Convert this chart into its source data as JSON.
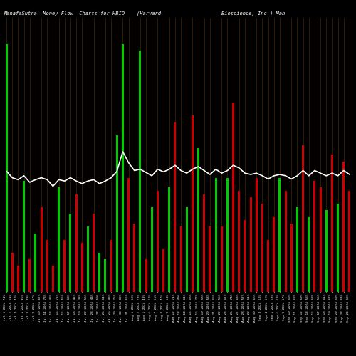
{
  "title": "ManafaSutra  Money Flow  Charts for HBIO    (Harvard                    Bioscience, Inc.) Man",
  "background_color": "#000000",
  "bar_color": [
    "#00CC00",
    "#CC0000",
    "#CC0000",
    "#00CC00",
    "#CC0000",
    "#00CC00",
    "#CC0000",
    "#CC0000",
    "#CC0000",
    "#00CC00",
    "#CC0000",
    "#00CC00",
    "#CC0000",
    "#CC0000",
    "#00CC00",
    "#CC0000",
    "#00CC00",
    "#00CC00",
    "#CC0000",
    "#00CC00",
    "#00CC00",
    "#CC0000",
    "#CC0000",
    "#00CC00",
    "#CC0000",
    "#00CC00",
    "#CC0000",
    "#CC0000",
    "#00CC00",
    "#CC0000",
    "#CC0000",
    "#00CC00",
    "#CC0000",
    "#00CC00",
    "#CC0000",
    "#CC0000",
    "#00CC00",
    "#CC0000",
    "#00CC00",
    "#CC0000",
    "#CC0000",
    "#CC0000",
    "#CC0000",
    "#CC0000",
    "#CC0000",
    "#CC0000",
    "#CC0000",
    "#00CC00",
    "#CC0000",
    "#CC0000",
    "#00CC00",
    "#CC0000",
    "#00CC00",
    "#CC0000",
    "#CC0000",
    "#00CC00",
    "#CC0000",
    "#00CC00",
    "#CC0000",
    "#CC0000"
  ],
  "bar_heights": [
    380,
    60,
    40,
    170,
    50,
    90,
    130,
    80,
    40,
    160,
    80,
    120,
    150,
    75,
    100,
    120,
    60,
    50,
    80,
    240,
    380,
    175,
    105,
    370,
    50,
    130,
    155,
    65,
    160,
    260,
    100,
    130,
    270,
    220,
    150,
    100,
    175,
    100,
    175,
    290,
    155,
    110,
    145,
    175,
    135,
    80,
    115,
    175,
    155,
    105,
    130,
    225,
    115,
    170,
    160,
    125,
    210,
    135,
    200,
    155
  ],
  "line_y": [
    185,
    175,
    172,
    178,
    168,
    172,
    175,
    172,
    162,
    172,
    170,
    175,
    170,
    166,
    170,
    172,
    166,
    170,
    175,
    185,
    215,
    198,
    186,
    188,
    183,
    178,
    188,
    184,
    188,
    194,
    186,
    182,
    188,
    192,
    186,
    180,
    188,
    182,
    186,
    194,
    190,
    182,
    180,
    182,
    178,
    173,
    178,
    180,
    178,
    173,
    178,
    186,
    178,
    186,
    182,
    178,
    182,
    178,
    186,
    180
  ],
  "grid_color": "#3A2000",
  "line_color": "#FFFFFF",
  "x_labels": [
    "Jul 1 2024 74%",
    "Jul 2 2024 54%",
    "Jul 3 2024 72%",
    "Jul 5 2024 46%",
    "Jul 8 2024 39%",
    "Jul 9 2024 57%",
    "Jul 10 2024 67%",
    "Jul 11 2024 73%",
    "Jul 12 2024 48%",
    "Jul 15 2024 72%",
    "Jul 16 2024 55%",
    "Jul 17 2024 63%",
    "Jul 18 2024 42%",
    "Jul 19 2024 38%",
    "Jul 22 2024 56%",
    "Jul 23 2024 44%",
    "Jul 24 2024 59%",
    "Jul 25 2024 61%",
    "Jul 26 2024 48%",
    "Jul 29 2024 75%",
    "Jul 30 2024 82%",
    "Jul 31 2024 65%",
    "Aug 1 2024 58%",
    "Aug 2 2024 79%",
    "Aug 5 2024 43%",
    "Aug 6 2024 62%",
    "Aug 7 2024 55%",
    "Aug 8 2024 47%",
    "Aug 9 2024 64%",
    "Aug 12 2024 71%",
    "Aug 13 2024 49%",
    "Aug 14 2024 61%",
    "Aug 15 2024 68%",
    "Aug 16 2024 72%",
    "Aug 19 2024 58%",
    "Aug 20 2024 53%",
    "Aug 21 2024 66%",
    "Aug 22 2024 55%",
    "Aug 23 2024 67%",
    "Aug 26 2024 74%",
    "Aug 27 2024 63%",
    "Aug 28 2024 57%",
    "Aug 29 2024 61%",
    "Aug 30 2024 65%",
    "Sep 3 2024 58%",
    "Sep 4 2024 52%",
    "Sep 5 2024 59%",
    "Sep 6 2024 63%",
    "Sep 9 2024 57%",
    "Sep 10 2024 50%",
    "Sep 11 2024 62%",
    "Sep 12 2024 69%",
    "Sep 13 2024 58%",
    "Sep 16 2024 63%",
    "Sep 17 2024 56%",
    "Sep 18 2024 61%",
    "Sep 19 2024 67%",
    "Sep 20 2024 59%",
    "Sep 23 2024 64%",
    "Sep 24 2024 60%"
  ],
  "ylim": [
    0,
    420
  ],
  "figsize": [
    5.0,
    5.0
  ],
  "dpi": 100
}
